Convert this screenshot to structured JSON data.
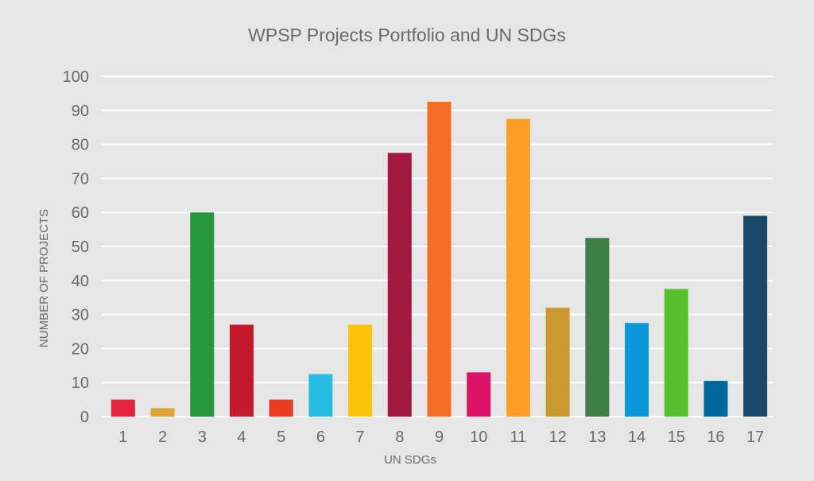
{
  "chart_data": {
    "type": "bar",
    "title": "WPSP Projects Portfolio and UN SDGs",
    "xlabel": "UN SDGs",
    "ylabel": "NUMBER OF PROJECTS",
    "ylim": [
      0,
      100
    ],
    "yticks": [
      0,
      10,
      20,
      30,
      40,
      50,
      60,
      70,
      80,
      90,
      100
    ],
    "grid": true,
    "categories": [
      "1",
      "2",
      "3",
      "4",
      "5",
      "6",
      "7",
      "8",
      "9",
      "10",
      "11",
      "12",
      "13",
      "14",
      "15",
      "16",
      "17"
    ],
    "values": [
      5,
      2.5,
      60,
      27,
      5,
      12.5,
      27,
      77.5,
      92.5,
      13,
      87.5,
      32,
      52.5,
      27.5,
      37.5,
      10.5,
      59
    ],
    "colors": [
      "#e5243b",
      "#dda63a",
      "#26973d",
      "#c5192d",
      "#e83c23",
      "#26bde2",
      "#fcc30b",
      "#a21942",
      "#f36d25",
      "#dd1367",
      "#fd9d24",
      "#c9992d",
      "#3f7e44",
      "#0a97d9",
      "#56c02b",
      "#00689d",
      "#19486a"
    ]
  }
}
